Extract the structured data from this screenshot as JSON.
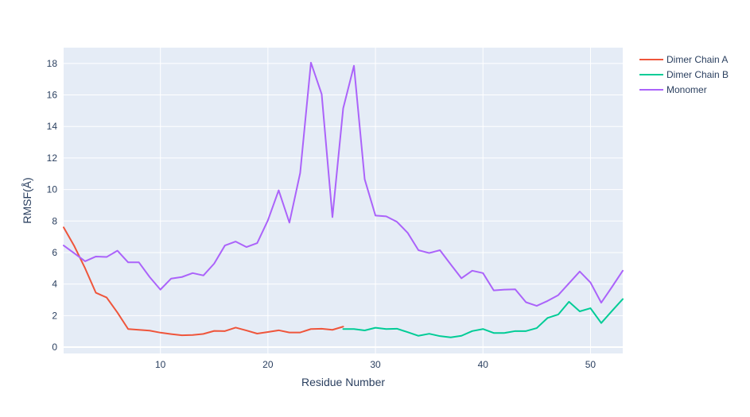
{
  "chart_data": {
    "type": "line",
    "xlabel": "Residue Number",
    "ylabel": "RMSF(Å)",
    "xlim": [
      1,
      53
    ],
    "ylim": [
      -0.4,
      19
    ],
    "x_ticks": [
      10,
      20,
      30,
      40,
      50
    ],
    "y_ticks": [
      0,
      2,
      4,
      6,
      8,
      10,
      12,
      14,
      16,
      18
    ],
    "grid": true,
    "legend_position": "top-right",
    "colors": {
      "plot_background": "#e5ecf6",
      "grid": "#ffffff",
      "text": "#2a3f5f"
    },
    "series": [
      {
        "name": "Dimer Chain A",
        "color": "#EF553B",
        "x": [
          1,
          2,
          3,
          4,
          5,
          6,
          7,
          8,
          9,
          10,
          11,
          12,
          13,
          14,
          15,
          16,
          17,
          18,
          19,
          20,
          21,
          22,
          23,
          24,
          25,
          26,
          27
        ],
        "y": [
          7.6,
          6.4,
          5.0,
          3.45,
          3.15,
          2.2,
          1.15,
          1.1,
          1.05,
          0.92,
          0.83,
          0.75,
          0.77,
          0.84,
          1.03,
          1.02,
          1.24,
          1.06,
          0.86,
          0.96,
          1.07,
          0.93,
          0.93,
          1.15,
          1.17,
          1.1,
          1.3
        ]
      },
      {
        "name": "Dimer Chain B",
        "color": "#00CC96",
        "x": [
          27,
          28,
          29,
          30,
          31,
          32,
          33,
          34,
          35,
          36,
          37,
          38,
          39,
          40,
          41,
          42,
          43,
          44,
          45,
          46,
          47,
          48,
          49,
          50,
          51,
          52,
          53
        ],
        "y": [
          1.15,
          1.15,
          1.06,
          1.23,
          1.15,
          1.17,
          0.95,
          0.72,
          0.85,
          0.7,
          0.62,
          0.72,
          1.02,
          1.15,
          0.9,
          0.9,
          1.02,
          1.02,
          1.21,
          1.85,
          2.07,
          2.88,
          2.27,
          2.47,
          1.53,
          2.3,
          3.05
        ]
      },
      {
        "name": "Monomer",
        "color": "#AB63FA",
        "x": [
          1,
          2,
          3,
          4,
          5,
          6,
          7,
          8,
          9,
          10,
          11,
          12,
          13,
          14,
          15,
          16,
          17,
          18,
          19,
          20,
          21,
          22,
          23,
          24,
          25,
          26,
          27,
          28,
          29,
          30,
          31,
          32,
          33,
          34,
          35,
          36,
          37,
          38,
          39,
          40,
          41,
          42,
          43,
          44,
          45,
          46,
          47,
          48,
          49,
          50,
          51,
          52,
          53
        ],
        "y": [
          6.45,
          5.95,
          5.45,
          5.75,
          5.72,
          6.12,
          5.38,
          5.38,
          4.45,
          3.65,
          4.35,
          4.45,
          4.7,
          4.55,
          5.3,
          6.45,
          6.7,
          6.35,
          6.6,
          8.05,
          9.95,
          7.9,
          11.05,
          18.05,
          16.05,
          8.25,
          15.15,
          17.85,
          10.65,
          8.35,
          8.3,
          7.95,
          7.25,
          6.15,
          5.97,
          6.15,
          5.25,
          4.37,
          4.85,
          4.7,
          3.6,
          3.65,
          3.67,
          2.85,
          2.62,
          2.93,
          3.3,
          4.05,
          4.8,
          4.1,
          2.82,
          3.82,
          4.85
        ]
      }
    ]
  }
}
